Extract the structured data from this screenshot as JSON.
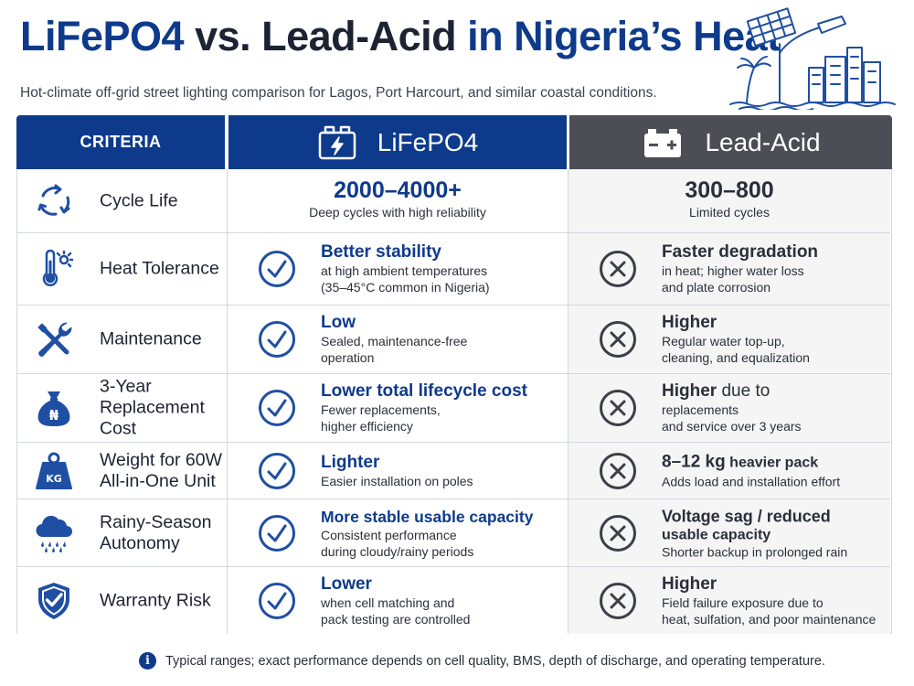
{
  "title": {
    "part1": "LiFePO4",
    "part2": " vs. Lead-Acid ",
    "part3": "in Nigeria’s Heat"
  },
  "subtitle": "Hot-climate off-grid street lighting comparison for Lagos, Port Harcourt, and similar coastal conditions.",
  "header": {
    "criteria": "CRITERIA",
    "lifepo4": "LiFePO4",
    "lead_acid": "Lead-Acid"
  },
  "rows": [
    {
      "criteria": [
        "Cycle Life"
      ],
      "icon": "cycle-arrows-icon",
      "lifepo4": {
        "value": "2000–4000+",
        "desc": [
          "Deep cycles with high reliability"
        ]
      },
      "lead_acid": {
        "value": "300–800",
        "desc": [
          "Limited cycles"
        ]
      }
    },
    {
      "criteria": [
        "Heat Tolerance"
      ],
      "icon": "thermometer-icon",
      "lifepo4": {
        "head": "Better stability",
        "desc": [
          "at high ambient temperatures",
          "(35–45°C common in Nigeria)"
        ]
      },
      "lead_acid": {
        "head": "Faster degradation",
        "desc": [
          "in heat; higher water loss",
          "and plate corrosion"
        ]
      }
    },
    {
      "criteria": [
        "Maintenance"
      ],
      "icon": "tools-icon",
      "lifepo4": {
        "head": "Low",
        "desc": [
          "Sealed, maintenance-free",
          "operation"
        ]
      },
      "lead_acid": {
        "head": "Higher",
        "desc": [
          "Regular water top-up,",
          "cleaning, and equalization"
        ]
      }
    },
    {
      "criteria": [
        "3-Year",
        "Replacement Cost"
      ],
      "icon": "naira-money-bag-icon",
      "lifepo4": {
        "head": "Lower total lifecycle cost",
        "desc": [
          "Fewer replacements,",
          "higher efficiency"
        ]
      },
      "lead_acid": {
        "head": "Higher",
        "head_rest": " due to",
        "desc": [
          "replacements",
          "and service over 3 years"
        ]
      }
    },
    {
      "criteria": [
        "Weight for 60W",
        "All-in-One Unit"
      ],
      "icon": "kg-weight-icon",
      "lifepo4": {
        "head": "Lighter",
        "desc": [
          "Easier installation on poles"
        ]
      },
      "lead_acid": {
        "head": "8–12 kg",
        "head_rest": " heavier pack",
        "desc": [
          "Adds load and installation effort"
        ]
      }
    },
    {
      "criteria": [
        "Rainy-Season",
        "Autonomy"
      ],
      "icon": "rain-cloud-icon",
      "lifepo4": {
        "head": "More stable usable capacity",
        "desc": [
          "Consistent performance",
          "during cloudy/rainy periods"
        ]
      },
      "lead_acid": {
        "head": "Voltage sag / reduced",
        "head2": "usable capacity",
        "desc": [
          "Shorter backup in prolonged rain"
        ]
      }
    },
    {
      "criteria": [
        "Warranty Risk"
      ],
      "icon": "shield-check-icon",
      "lifepo4": {
        "head": "Lower",
        "desc": [
          "when cell matching and",
          "pack testing are controlled"
        ]
      },
      "lead_acid": {
        "head": "Higher",
        "desc": [
          "Field failure exposure due to",
          "heat, sulfation, and poor maintenance"
        ]
      }
    }
  ],
  "footnote": "Typical ranges; exact performance depends on cell quality, BMS, depth of discharge, and operating temperature.",
  "colors": {
    "brand_blue": "#0e3a8c",
    "lead_gray": "#4b4e55",
    "check_blue": "#1f4fa3",
    "cross_gray": "#3b3f47"
  }
}
